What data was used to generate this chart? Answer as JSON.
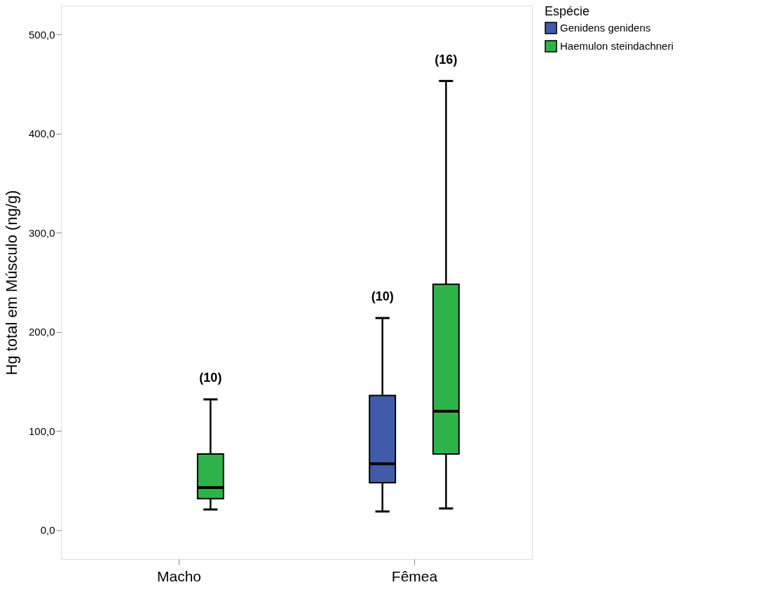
{
  "chart_data": {
    "type": "box",
    "ylabel": "Hg total em Músculo (ng/g)",
    "legend_title": "Espécie",
    "legend": "top right",
    "categories": [
      "Macho",
      "Fêmea"
    ],
    "ylim": [
      -29,
      529
    ],
    "yticks": [
      {
        "value": 0,
        "label": "0,0"
      },
      {
        "value": 100,
        "label": "100,0"
      },
      {
        "value": 200,
        "label": "200,0"
      },
      {
        "value": 300,
        "label": "300,0"
      },
      {
        "value": 400,
        "label": "400,0"
      },
      {
        "value": 500,
        "label": "500,0"
      }
    ],
    "grid": false,
    "series": [
      {
        "name": "Genidens genidens",
        "color": "#3f5ba9",
        "boxes": [
          null,
          {
            "low": 19,
            "q1": 48,
            "median": 67,
            "q3": 136,
            "high": 214
          }
        ]
      },
      {
        "name": "Haemulon steindachneri",
        "color": "#2db34a",
        "boxes": [
          {
            "low": 21,
            "q1": 32,
            "median": 43,
            "q3": 77,
            "high": 132
          },
          {
            "low": 22,
            "q1": 77,
            "median": 120,
            "q3": 248,
            "high": 453
          }
        ]
      }
    ],
    "annotations": [
      "(10)",
      "(10)",
      "(16)"
    ]
  }
}
